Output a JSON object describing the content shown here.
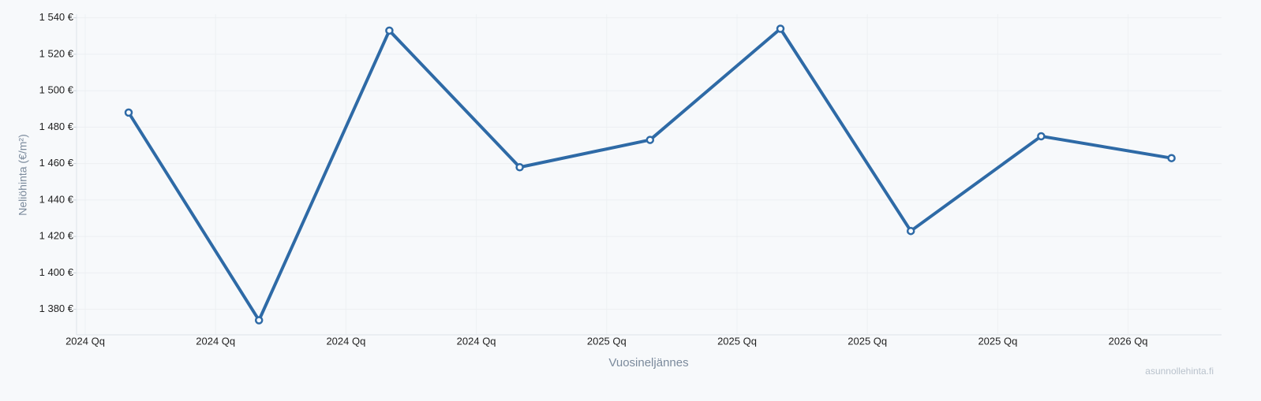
{
  "chart_data": {
    "type": "line",
    "x_title": "Vuosineljännes",
    "y_title": "Neliöhinta (€/m²)",
    "watermark": "asunnollehinta.fi",
    "categories": [
      "2024 Qq",
      "2024 Qq",
      "2024 Qq",
      "2024 Qq",
      "2025 Qq",
      "2025 Qq",
      "2025 Qq",
      "2025 Qq",
      "2026 Qq"
    ],
    "series": [
      {
        "name": "Neliöhinta",
        "color": "#2e6aa6",
        "values": [
          1488,
          1374,
          1533,
          1458,
          1473,
          1534,
          1423,
          1475,
          1463
        ]
      }
    ],
    "ylim": [
      1366,
      1542
    ],
    "yticks": [
      {
        "value": 1380,
        "label": "1 380 €"
      },
      {
        "value": 1400,
        "label": "1 400 €"
      },
      {
        "value": 1420,
        "label": "1 420 €"
      },
      {
        "value": 1440,
        "label": "1 440 €"
      },
      {
        "value": 1460,
        "label": "1 460 €"
      },
      {
        "value": 1480,
        "label": "1 480 €"
      },
      {
        "value": 1500,
        "label": "1 500 €"
      },
      {
        "value": 1520,
        "label": "1 520 €"
      },
      {
        "value": 1540,
        "label": "1 540 €"
      }
    ],
    "grid": true
  }
}
